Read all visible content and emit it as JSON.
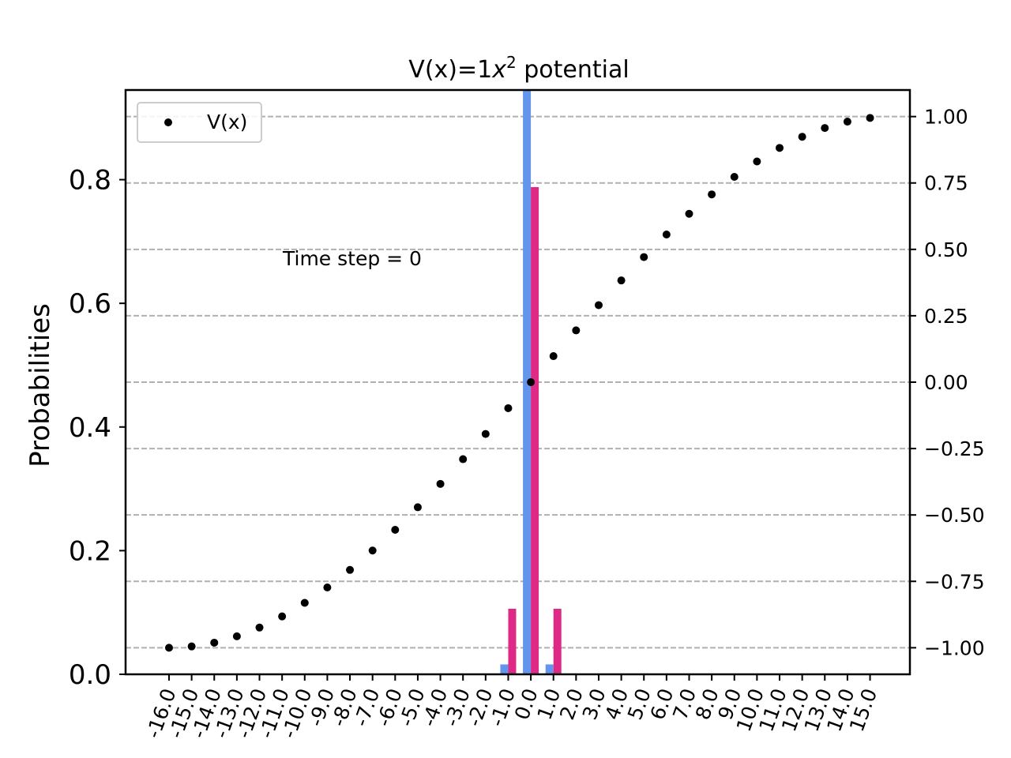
{
  "chart_data": {
    "type": "bar",
    "title_main": "V(x)=1",
    "title_var": "x",
    "title_exp": "2",
    "title_tail": " potential",
    "ylabel": "Probabilities",
    "annotation": "Time step = 0",
    "ylim": [
      0,
      0.945
    ],
    "y2lim": [
      -1.1,
      1.1
    ],
    "yticks": [
      0.0,
      0.2,
      0.4,
      0.6,
      0.8
    ],
    "ytick_labels": [
      "0.0",
      "0.2",
      "0.4",
      "0.6",
      "0.8"
    ],
    "y2ticks": [
      1.0,
      0.75,
      0.5,
      0.25,
      0.0,
      -0.25,
      -0.5,
      -0.75,
      -1.0
    ],
    "y2tick_labels": [
      "1.00",
      "0.75",
      "0.50",
      "0.25",
      "0.00",
      "−0.25",
      "−0.50",
      "−0.75",
      "−1.00"
    ],
    "categories": [
      "-16.0",
      "-15.0",
      "-14.0",
      "-13.0",
      "-12.0",
      "-11.0",
      "-10.0",
      "-9.0",
      "-8.0",
      "-7.0",
      "-6.0",
      "-5.0",
      "-4.0",
      "-3.0",
      "-2.0",
      "-1.0",
      "0.0",
      "1.0",
      "2.0",
      "3.0",
      "4.0",
      "5.0",
      "6.0",
      "7.0",
      "8.0",
      "9.0",
      "10.0",
      "11.0",
      "12.0",
      "13.0",
      "14.0",
      "15.0"
    ],
    "series": [
      {
        "color": "#6495ED",
        "values": [
          0,
          0,
          0,
          0,
          0,
          0,
          0,
          0,
          0,
          0,
          0,
          0,
          0,
          0,
          0,
          0.016,
          0.97,
          0.016,
          0,
          0,
          0,
          0,
          0,
          0,
          0,
          0,
          0,
          0,
          0,
          0,
          0,
          0
        ]
      },
      {
        "color": "#DE2A86",
        "values": [
          0,
          0,
          0,
          0,
          0,
          0,
          0,
          0,
          0,
          0,
          0,
          0,
          0,
          0,
          0,
          0.106,
          0.788,
          0.106,
          0,
          0,
          0,
          0,
          0,
          0,
          0,
          0,
          0,
          0,
          0,
          0,
          0,
          0
        ]
      }
    ],
    "potential": {
      "name": "V(x)",
      "color": "#000000",
      "values": [
        -1.0,
        -0.995,
        -0.981,
        -0.957,
        -0.924,
        -0.882,
        -0.831,
        -0.773,
        -0.707,
        -0.634,
        -0.556,
        -0.471,
        -0.383,
        -0.29,
        -0.195,
        -0.098,
        0.0,
        0.098,
        0.195,
        0.29,
        0.383,
        0.471,
        0.556,
        0.634,
        0.707,
        0.773,
        0.831,
        0.882,
        0.924,
        0.957,
        0.981,
        0.995
      ]
    },
    "legend_position": "upper left",
    "grid": "right-axis horizontal dashed"
  }
}
